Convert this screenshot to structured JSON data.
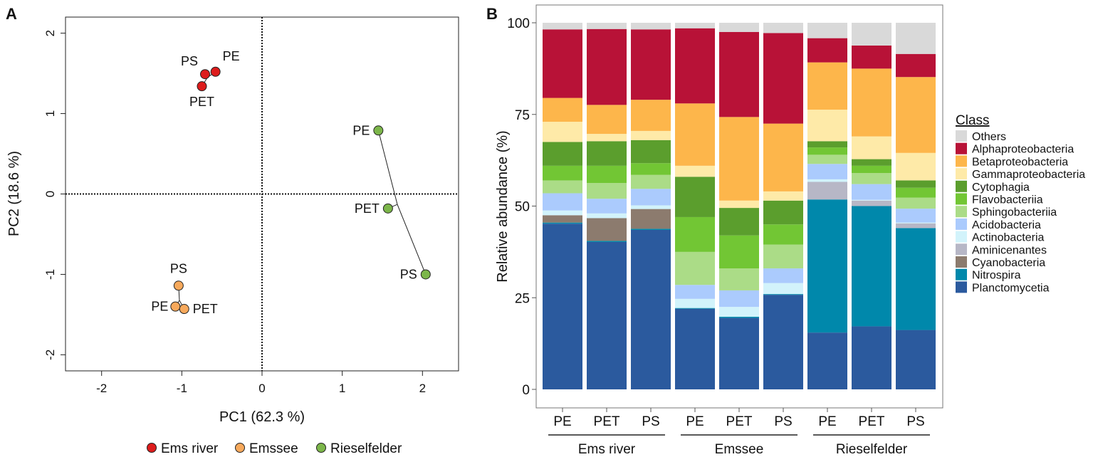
{
  "chart_data": [
    {
      "panel_label": "A",
      "type": "scatter",
      "xlabel": "PC1 (62.3 %)",
      "ylabel": "PC2 (18.6 %)",
      "xlim": [
        -2.45,
        2.45
      ],
      "ylim": [
        -2.2,
        2.2
      ],
      "xticks": [
        -2,
        -1,
        0,
        1,
        2
      ],
      "yticks": [
        -2,
        -1,
        0,
        1,
        2
      ],
      "reference_lines": {
        "x": 0,
        "y": 0,
        "style": "dotted"
      },
      "grid": false,
      "legend_placement": "bottom",
      "groups": [
        {
          "name": "Ems river",
          "color": "#dd1c1c",
          "points": [
            {
              "label": "PS",
              "x": -0.71,
              "y": 1.49
            },
            {
              "label": "PE",
              "x": -0.58,
              "y": 1.52
            },
            {
              "label": "PET",
              "x": -0.75,
              "y": 1.34
            }
          ]
        },
        {
          "name": "Emssee",
          "color": "#f7a95c",
          "points": [
            {
              "label": "PS",
              "x": -1.04,
              "y": -1.14
            },
            {
              "label": "PE",
              "x": -1.08,
              "y": -1.4
            },
            {
              "label": "PET",
              "x": -0.97,
              "y": -1.43
            }
          ]
        },
        {
          "name": "Rieselfelder",
          "color": "#7cb64a",
          "points": [
            {
              "label": "PE",
              "x": 1.45,
              "y": 0.79
            },
            {
              "label": "PET",
              "x": 1.57,
              "y": -0.18
            },
            {
              "label": "PS",
              "x": 2.04,
              "y": -1.0
            }
          ]
        }
      ]
    },
    {
      "panel_label": "B",
      "type": "bar",
      "stacked": true,
      "ylabel": "Relative abundance (%)",
      "ylim": [
        -5,
        105
      ],
      "yticks": [
        0,
        25,
        50,
        75,
        100
      ],
      "categories": [
        "PE",
        "PET",
        "PS",
        "PE",
        "PET",
        "PS",
        "PE",
        "PET",
        "PS"
      ],
      "category_groups": [
        {
          "name": "Ems river",
          "members": [
            0,
            1,
            2
          ]
        },
        {
          "name": "Emssee",
          "members": [
            3,
            4,
            5
          ]
        },
        {
          "name": "Rieselfelder",
          "members": [
            6,
            7,
            8
          ]
        }
      ],
      "legend_title": "Class",
      "legend_placement": "right",
      "series": [
        {
          "name": "Planctomycetia",
          "color": "#2b5a9e",
          "values": [
            45.2,
            40.2,
            43.5,
            22.0,
            19.5,
            25.8,
            15.5,
            17.2,
            16.2
          ]
        },
        {
          "name": "Nitrospira",
          "color": "#0088ab",
          "values": [
            0.3,
            0.3,
            0.3,
            0.2,
            0.3,
            0.2,
            36.3,
            32.8,
            27.8
          ]
        },
        {
          "name": "Cyanobacteria",
          "color": "#8c7b6e",
          "values": [
            2.0,
            6.2,
            5.4,
            0,
            0,
            0,
            0,
            0,
            0
          ]
        },
        {
          "name": "Aminicenantes",
          "color": "#b7b7c6",
          "values": [
            0,
            0,
            0,
            0,
            0,
            0,
            4.8,
            1.5,
            1.3
          ]
        },
        {
          "name": "Actinobacteria",
          "color": "#d2f3fb",
          "values": [
            1.3,
            1.3,
            1.0,
            2.5,
            2.7,
            3.0,
            0.7,
            0.2,
            0.2
          ]
        },
        {
          "name": "Acidobacteria",
          "color": "#abcbfd",
          "values": [
            4.7,
            4.0,
            4.5,
            3.8,
            4.5,
            4.0,
            4.2,
            4.3,
            3.8
          ]
        },
        {
          "name": "Sphingobacteriia",
          "color": "#abdc87",
          "values": [
            3.5,
            4.3,
            3.8,
            9.0,
            6.0,
            6.5,
            2.5,
            3.0,
            3.0
          ]
        },
        {
          "name": "Flavobacteriia",
          "color": "#72c634",
          "values": [
            4.0,
            4.7,
            3.2,
            9.5,
            9.0,
            5.5,
            2.0,
            2.0,
            2.7
          ]
        },
        {
          "name": "Cytophagia",
          "color": "#5b9e2d",
          "values": [
            6.5,
            6.7,
            6.3,
            11.0,
            7.5,
            6.5,
            1.7,
            1.8,
            2.0
          ]
        },
        {
          "name": "Gammaproteobacteria",
          "color": "#feeaa8",
          "values": [
            5.5,
            2.0,
            2.5,
            3.0,
            2.0,
            2.5,
            8.6,
            6.2,
            7.5
          ]
        },
        {
          "name": "Betaproteobacteria",
          "color": "#fdb64b",
          "values": [
            6.5,
            7.9,
            8.5,
            17.0,
            22.8,
            18.5,
            12.9,
            18.5,
            20.7
          ]
        },
        {
          "name": "Alphaproteobacteria",
          "color": "#b81237",
          "values": [
            18.7,
            20.7,
            19.2,
            20.5,
            23.2,
            24.7,
            6.6,
            6.3,
            6.3
          ]
        },
        {
          "name": "Others",
          "color": "#d9d9d9",
          "values": [
            1.8,
            1.7,
            1.8,
            1.5,
            2.5,
            2.8,
            4.2,
            6.2,
            8.5
          ]
        }
      ]
    }
  ]
}
